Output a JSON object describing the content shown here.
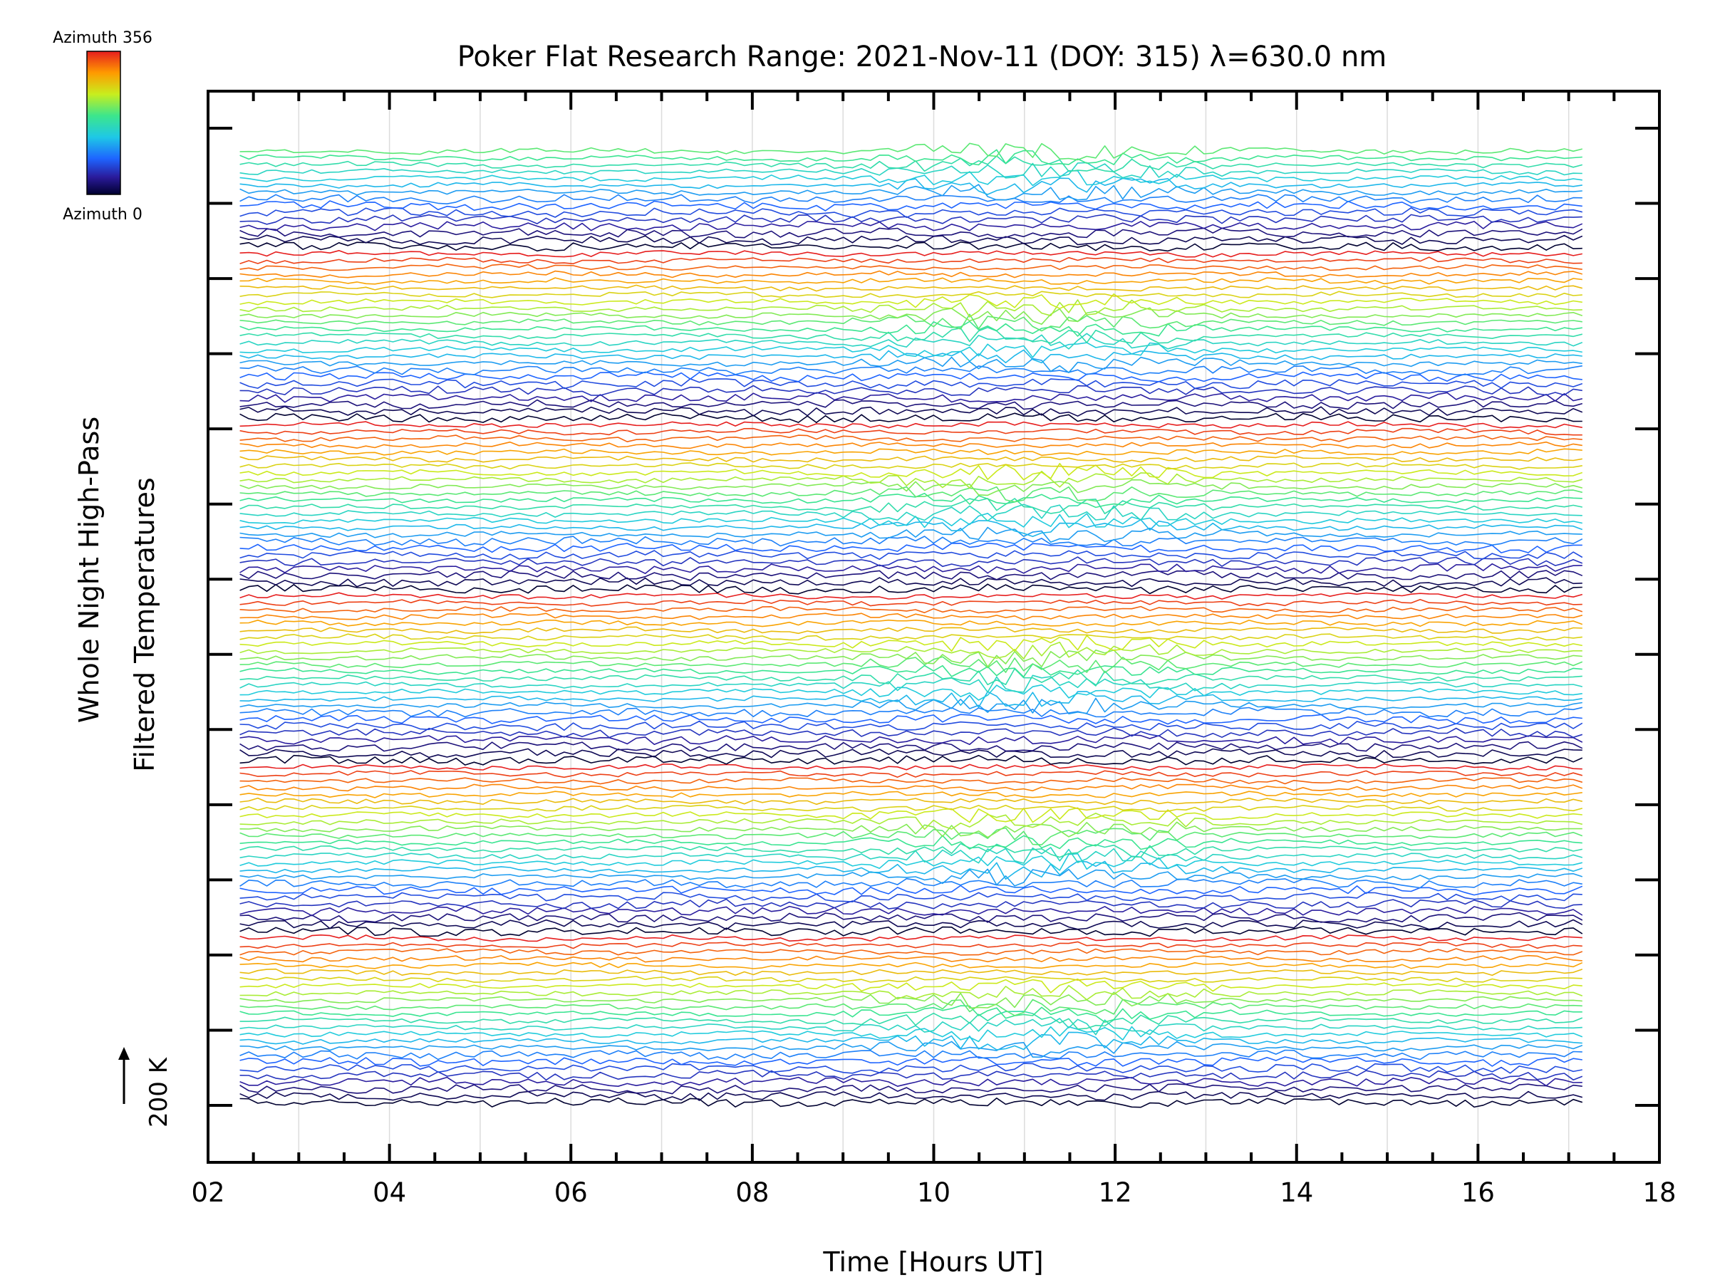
{
  "chart_data": {
    "type": "line",
    "title": "Poker Flat Research Range: 2021-Nov-11 (DOY: 315) λ=630.0 nm",
    "xlabel": "Time [Hours UT]",
    "ylabel_line1": "Whole Night High-Pass",
    "ylabel_line2": "Filtered Temperatures",
    "xlim": [
      2,
      18
    ],
    "x_ticks": [
      "02",
      "04",
      "06",
      "08",
      "10",
      "12",
      "14",
      "16",
      "18"
    ],
    "x_minor_step": 0.5,
    "data_x_range": [
      2.35,
      17.15
    ],
    "grid": true,
    "scale_bar_label": "200 K",
    "colorbar": {
      "top_label": "Azimuth 356",
      "bottom_label": "Azimuth 0",
      "azimuth_min": 0,
      "azimuth_max": 356,
      "colormap": "rainbow"
    },
    "series_count": 140,
    "azimuth_cycle_length": 25,
    "stacked_offset_rows": true,
    "colors": {
      "azimuth_0": "#000030",
      "azimuth_low": "#1e1eb4",
      "azimuth_mid_low": "#28c8e6",
      "azimuth_mid": "#46e678",
      "azimuth_mid_high": "#dce614",
      "azimuth_high": "#ff8c00",
      "azimuth_356": "#e61e1e"
    },
    "activity_note_hours": [
      8.8,
      13.5
    ]
  }
}
